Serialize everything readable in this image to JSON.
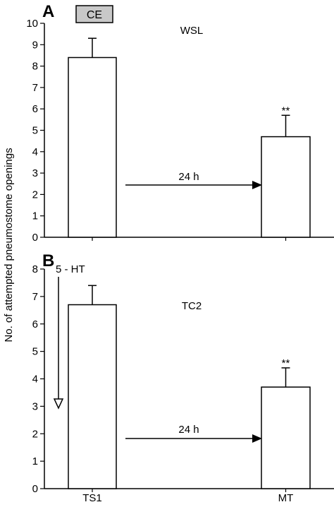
{
  "figure": {
    "ylabel": "No. of attempted pneumostome openings"
  },
  "chart_data": [
    {
      "type": "bar",
      "panel_letter": "A",
      "badge": "CE",
      "group_label": "WSL",
      "categories": [
        "TS1",
        "MT"
      ],
      "values": [
        8.4,
        4.7
      ],
      "errors": [
        0.9,
        1.0
      ],
      "significance": [
        "",
        "**"
      ],
      "arrow_label": "24 h",
      "ylim": [
        0,
        10
      ],
      "yticks": [
        0,
        1,
        2,
        3,
        4,
        5,
        6,
        7,
        8,
        9,
        10
      ],
      "show_xtick_labels": false
    },
    {
      "type": "bar",
      "panel_letter": "B",
      "vertical_arrow_label": "5 - HT",
      "group_label": "TC2",
      "categories": [
        "TS1",
        "MT"
      ],
      "values": [
        6.7,
        3.7
      ],
      "errors": [
        0.7,
        0.7
      ],
      "significance": [
        "",
        "**"
      ],
      "arrow_label": "24 h",
      "ylim": [
        0,
        8
      ],
      "yticks": [
        0,
        1,
        2,
        3,
        4,
        5,
        6,
        7,
        8
      ],
      "show_xtick_labels": true
    }
  ]
}
